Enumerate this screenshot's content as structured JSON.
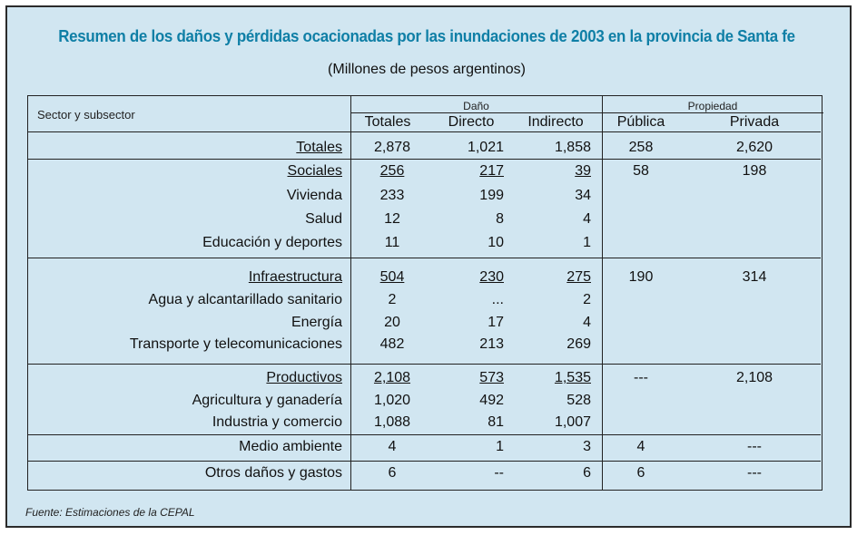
{
  "title": "Resumen de los daños y pérdidas ocacionadas por las inundaciones de 2003 en la provincia de Santa fe",
  "subtitle": "(Millones de pesos argentinos)",
  "header": {
    "sector_label": "Sector y subsector",
    "dano_label": "Daño",
    "propiedad_label": "Propiedad",
    "columns": [
      "Totales",
      "Directo",
      "Indirecto",
      "Pública",
      "Privada"
    ]
  },
  "rows": [
    {
      "label": "Totales",
      "values": [
        "2,878",
        "1,021",
        "1,858",
        "258",
        "2,620"
      ]
    },
    {
      "label": "Sociales",
      "values": [
        "256",
        "217",
        "39",
        "58",
        "198"
      ]
    },
    {
      "label": "Vivienda",
      "values": [
        "233",
        "199",
        "34",
        "",
        ""
      ]
    },
    {
      "label": "Salud",
      "values": [
        "12",
        "8",
        "4",
        "",
        ""
      ]
    },
    {
      "label": "Educación y deportes",
      "values": [
        "11",
        "10",
        "1",
        "",
        ""
      ]
    },
    {
      "label": "Infraestructura",
      "values": [
        "504",
        "230",
        "275",
        "190",
        "314"
      ]
    },
    {
      "label": "Agua y alcantarillado sanitario",
      "values": [
        "2",
        "...",
        "2",
        "",
        ""
      ]
    },
    {
      "label": "Energía",
      "values": [
        "20",
        "17",
        "4",
        "",
        ""
      ]
    },
    {
      "label": "Transporte y telecomunicaciones",
      "values": [
        "482",
        "213",
        "269",
        "",
        ""
      ]
    },
    {
      "label": "Productivos",
      "values": [
        "2,108",
        "573",
        "1,535",
        "---",
        "2,108"
      ]
    },
    {
      "label": "Agricultura y ganadería",
      "values": [
        "1,020",
        "492",
        "528",
        "",
        ""
      ]
    },
    {
      "label": "Industria y comercio",
      "values": [
        "1,088",
        "81",
        "1,007",
        "",
        ""
      ]
    },
    {
      "label": "Medio ambiente",
      "values": [
        "4",
        "1",
        "3",
        "4",
        "---"
      ]
    },
    {
      "label": "Otros daños y gastos",
      "values": [
        "6",
        "--",
        "6",
        "6",
        "---"
      ]
    }
  ],
  "source": "Fuente: Estimaciones de la CEPAL"
}
